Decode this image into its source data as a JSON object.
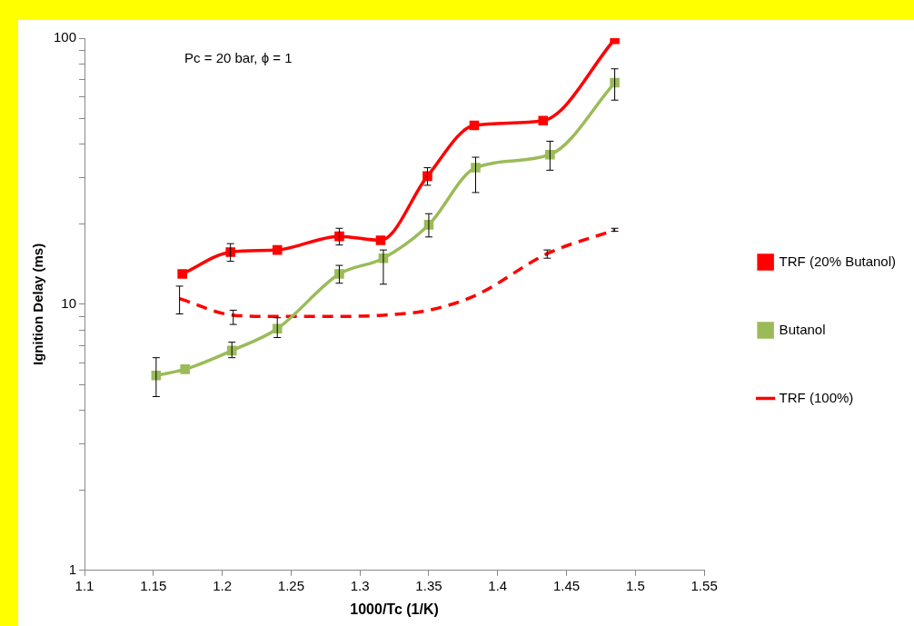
{
  "chart_data": {
    "type": "line",
    "xlabel": "1000/Tc (1/K)",
    "ylabel": "Ignition Delay (ms)",
    "annotations": [
      "Pc = 20 bar, ϕ = 1"
    ],
    "log": "y",
    "grid": false,
    "legend": "right",
    "xlim": [
      1.1,
      1.55
    ],
    "xticks": [
      1.1,
      1.15,
      1.2,
      1.25,
      1.3,
      1.35,
      1.4,
      1.45,
      1.5,
      1.55
    ],
    "ylim": [
      1,
      100
    ],
    "yticks": [
      1,
      {
        "value": 2,
        "label": null
      },
      {
        "value": 3,
        "label": null
      },
      {
        "value": 4,
        "label": null
      },
      {
        "value": 5,
        "label": null
      },
      {
        "value": 6,
        "label": null
      },
      {
        "value": 7,
        "label": null
      },
      {
        "value": 8,
        "label": null
      },
      {
        "value": 9,
        "label": null
      },
      10,
      {
        "value": 20,
        "label": null
      },
      {
        "value": 30,
        "label": null
      },
      {
        "value": 40,
        "label": null
      },
      {
        "value": 50,
        "label": null
      },
      {
        "value": 60,
        "label": null
      },
      {
        "value": 70,
        "label": null
      },
      {
        "value": 80,
        "label": null
      },
      {
        "value": 90,
        "label": null
      },
      100
    ],
    "series": [
      {
        "name": "TRF (20% Butanol)",
        "color": "#ff0000",
        "marker": "square",
        "line_style": "solid",
        "x": [
          1.171,
          1.206,
          1.24,
          1.285,
          1.315,
          1.349,
          1.383,
          1.433,
          1.485
        ],
        "values": [
          13.0,
          15.7,
          16.0,
          18.0,
          17.4,
          30.3,
          47,
          49,
          99
        ],
        "errors": [
          null,
          [
            14.5,
            16.9
          ],
          null,
          [
            16.7,
            19.3
          ],
          null,
          [
            28,
            32.6
          ],
          null,
          null,
          null
        ]
      },
      {
        "name": "Butanol",
        "color": "#9bbb59",
        "marker": "square",
        "line_style": "solid",
        "x": [
          1.152,
          1.173,
          1.207,
          1.24,
          1.285,
          1.317,
          1.35,
          1.384,
          1.438,
          1.485
        ],
        "values": [
          5.4,
          5.7,
          6.7,
          8.1,
          13,
          14.9,
          19.9,
          32.6,
          36.5,
          68
        ],
        "errors": [
          [
            4.5,
            6.3
          ],
          null,
          [
            6.3,
            7.2
          ],
          [
            7.5,
            8.9
          ],
          [
            12,
            14
          ],
          [
            11.9,
            16
          ],
          [
            17.9,
            21.9
          ],
          [
            26.3,
            35.7
          ],
          [
            31.9,
            41
          ],
          [
            58.5,
            76.7
          ]
        ]
      },
      {
        "name": "TRF (100%)",
        "color": "#ff0000",
        "marker": "none",
        "line_style": "dashed",
        "x": [
          1.169,
          1.208,
          1.24,
          1.285,
          1.317,
          1.35,
          1.384,
          1.436,
          1.485
        ],
        "values": [
          10.5,
          9.1,
          9.0,
          9.0,
          9.1,
          9.5,
          10.8,
          15.5,
          19.0
        ],
        "errors": [
          [
            9.2,
            11.7
          ],
          [
            8.4,
            9.5
          ],
          null,
          null,
          null,
          null,
          null,
          [
            14.9,
            16
          ],
          [
            18.8,
            19.3
          ]
        ]
      }
    ]
  }
}
